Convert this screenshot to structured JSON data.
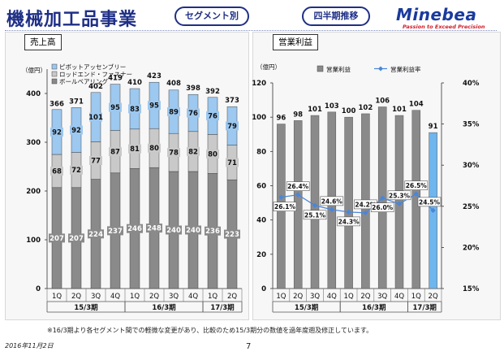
{
  "header": {
    "title": "機械加工品事業",
    "segment_pill": "セグメント別",
    "quarter_pill": "四半期推移",
    "logo": "Minebea",
    "slogan": "Passion to Exceed Precision"
  },
  "footnote": "※16/3期より各セグメント間での軽微な変更があり、比較のため15/3期分の数値を過年度遡及修正しています。",
  "date": "2016年11月2日",
  "page_number": "7",
  "colors": {
    "ball_bearing": "#8a8a8a",
    "rod_end": "#c9c9c9",
    "pivot": "#9dc8ef",
    "op_income_bar": "#8a8a8a",
    "op_income_latest": "#6fb5ee",
    "margin_line": "#4a86d8",
    "title_blue": "#1f2f86"
  },
  "chart_data": [
    {
      "type": "bar",
      "stacked": true,
      "title": "売上高",
      "ylabel": "（億円）",
      "ylim": [
        0,
        450
      ],
      "yticks": [
        0,
        100,
        200,
        300,
        400
      ],
      "categories": [
        "1Q",
        "2Q",
        "3Q",
        "4Q",
        "1Q",
        "2Q",
        "3Q",
        "4Q",
        "1Q",
        "2Q"
      ],
      "fiscal_groups": [
        {
          "label": "15/3期",
          "start": 0,
          "end": 3
        },
        {
          "label": "16/3期",
          "start": 4,
          "end": 7
        },
        {
          "label": "17/3期",
          "start": 8,
          "end": 9
        }
      ],
      "legend_position": "top-left",
      "series": [
        {
          "name": "ボールベアリング",
          "values": [
            207,
            207,
            224,
            237,
            246,
            248,
            240,
            240,
            236,
            223
          ]
        },
        {
          "name": "ロッドエンド・ファスナー",
          "values": [
            68,
            72,
            77,
            87,
            81,
            80,
            78,
            82,
            80,
            71
          ]
        },
        {
          "name": "ピボットアッセンブリー",
          "values": [
            92,
            92,
            101,
            95,
            83,
            95,
            89,
            76,
            76,
            79
          ]
        }
      ],
      "totals": [
        366,
        371,
        402,
        419,
        410,
        423,
        408,
        398,
        392,
        373
      ]
    },
    {
      "type": "bar",
      "title": "営業利益",
      "ylabel": "（億円）",
      "ylim": [
        0,
        120
      ],
      "yticks": [
        0,
        20,
        40,
        60,
        80,
        100,
        120
      ],
      "y2lim": [
        15,
        40
      ],
      "y2ticks": [
        "15%",
        "20%",
        "25%",
        "30%",
        "35%",
        "40%"
      ],
      "categories": [
        "1Q",
        "2Q",
        "3Q",
        "4Q",
        "1Q",
        "2Q",
        "3Q",
        "4Q",
        "1Q",
        "2Q"
      ],
      "fiscal_groups": [
        {
          "label": "15/3期",
          "start": 0,
          "end": 3
        },
        {
          "label": "16/3期",
          "start": 4,
          "end": 7
        },
        {
          "label": "17/3期",
          "start": 8,
          "end": 9
        }
      ],
      "legend_position": "top-center",
      "series": [
        {
          "name": "営業利益",
          "values": [
            96,
            98,
            101,
            103,
            100,
            102,
            106,
            101,
            104,
            91
          ]
        },
        {
          "name": "営業利益率",
          "axis": "right",
          "values": [
            26.1,
            26.4,
            25.1,
            24.6,
            24.3,
            24.2,
            26.0,
            25.3,
            26.5,
            24.5
          ],
          "labels": [
            "26.1%",
            "26.4%",
            "25.1%",
            "24.6%",
            "24.3%",
            "24.2%",
            "26.0%",
            "25.3%",
            "26.5%",
            "24.5%"
          ]
        }
      ]
    }
  ]
}
